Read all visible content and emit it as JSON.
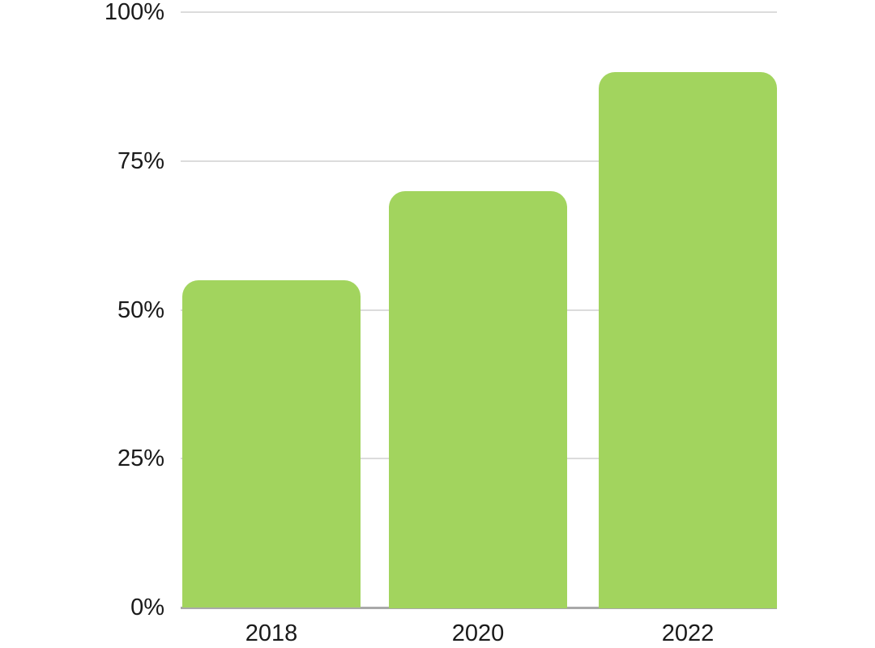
{
  "chart_data": {
    "type": "bar",
    "title": "",
    "xlabel": "",
    "ylabel": "",
    "categories": [
      "2018",
      "2020",
      "2022"
    ],
    "values": [
      55,
      70,
      90
    ],
    "unit": "%",
    "ylim": [
      0,
      100
    ],
    "yticks": [
      0,
      25,
      50,
      75,
      100
    ],
    "ytick_labels": [
      "0%",
      "25%",
      "50%",
      "75%",
      "100%"
    ],
    "grid": true,
    "legend_position": "none",
    "colors": {
      "bar": "#a2d45e",
      "gridline": "#dcdcdc",
      "baseline": "#a9a9a9",
      "tick_text": "#1a1a1a",
      "background": "#ffffff"
    }
  }
}
